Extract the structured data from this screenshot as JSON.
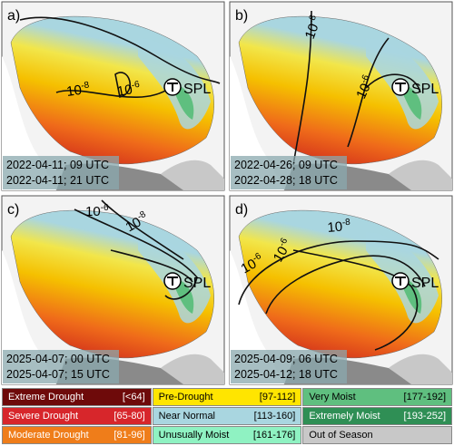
{
  "panels": [
    {
      "label": "a)",
      "dates": [
        "2022-04-11; 09 UTC",
        "2022-04-11; 21 UTC"
      ],
      "site": "SPL",
      "contour_labels": [
        {
          "base": "10",
          "exp": "-8"
        },
        {
          "base": "10",
          "exp": "-6"
        }
      ]
    },
    {
      "label": "b)",
      "dates": [
        "2022-04-26; 09 UTC",
        "2022-04-28; 18 UTC"
      ],
      "site": "SPL",
      "contour_labels": [
        {
          "base": "10",
          "exp": "-8"
        },
        {
          "base": "10",
          "exp": "-6"
        }
      ]
    },
    {
      "label": "c)",
      "dates": [
        "2025-04-07; 00 UTC",
        "2025-04-07; 15 UTC"
      ],
      "site": "SPL",
      "contour_labels": [
        {
          "base": "10",
          "exp": "-6"
        },
        {
          "base": "10",
          "exp": "-8"
        }
      ]
    },
    {
      "label": "d)",
      "dates": [
        "2025-04-09; 06 UTC",
        "2025-04-12; 18 UTC"
      ],
      "site": "SPL",
      "contour_labels": [
        {
          "base": "10",
          "exp": "-8"
        },
        {
          "base": "10",
          "exp": "-6"
        },
        {
          "base": "10",
          "exp": "-6"
        }
      ]
    }
  ],
  "legend": [
    {
      "name": "Extreme Drought",
      "range": "[<64]",
      "color": "#6e0a0a"
    },
    {
      "name": "Pre-Drought",
      "range": "[97-112]",
      "color": "#ffe500"
    },
    {
      "name": "Very Moist",
      "range": "[177-192]",
      "color": "#5fbf7f"
    },
    {
      "name": "Severe Drought",
      "range": "[65-80]",
      "color": "#d7262b"
    },
    {
      "name": "Near Normal",
      "range": "[113-160]",
      "color": "#a9d6e0"
    },
    {
      "name": "Extremely Moist",
      "range": "[193-252]",
      "color": "#2f8f55"
    },
    {
      "name": "Moderate Drought",
      "range": "[81-96]",
      "color": "#ef7d1a"
    },
    {
      "name": "Unusually Moist",
      "range": "[161-176]",
      "color": "#8ff2c2"
    },
    {
      "name": "Out of Season",
      "color": "#c8c8c8"
    }
  ]
}
